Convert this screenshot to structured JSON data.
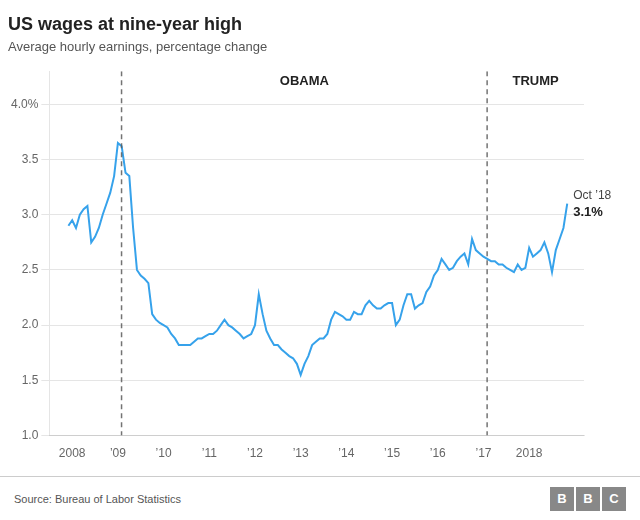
{
  "chart_data": {
    "type": "line",
    "title": "US wages at nine-year high",
    "subtitle": "Average hourly earnings, percentage change",
    "source": "Source: Bureau of Labor Statistics",
    "logo": "BBC",
    "x": [
      2007.917,
      2008.0,
      2008.083,
      2008.167,
      2008.25,
      2008.333,
      2008.417,
      2008.5,
      2008.583,
      2008.667,
      2008.75,
      2008.833,
      2008.917,
      2009.0,
      2009.083,
      2009.167,
      2009.25,
      2009.333,
      2009.417,
      2009.5,
      2009.583,
      2009.667,
      2009.75,
      2009.833,
      2009.917,
      2010.0,
      2010.083,
      2010.167,
      2010.25,
      2010.333,
      2010.417,
      2010.5,
      2010.583,
      2010.667,
      2010.75,
      2010.833,
      2010.917,
      2011.0,
      2011.083,
      2011.167,
      2011.25,
      2011.333,
      2011.417,
      2011.5,
      2011.583,
      2011.667,
      2011.75,
      2011.833,
      2011.917,
      2012.0,
      2012.083,
      2012.167,
      2012.25,
      2012.333,
      2012.417,
      2012.5,
      2012.583,
      2012.667,
      2012.75,
      2012.833,
      2012.917,
      2013.0,
      2013.083,
      2013.167,
      2013.25,
      2013.333,
      2013.417,
      2013.5,
      2013.583,
      2013.667,
      2013.75,
      2013.833,
      2013.917,
      2014.0,
      2014.083,
      2014.167,
      2014.25,
      2014.333,
      2014.417,
      2014.5,
      2014.583,
      2014.667,
      2014.75,
      2014.833,
      2014.917,
      2015.0,
      2015.083,
      2015.167,
      2015.25,
      2015.333,
      2015.417,
      2015.5,
      2015.583,
      2015.667,
      2015.75,
      2015.833,
      2015.917,
      2016.0,
      2016.083,
      2016.167,
      2016.25,
      2016.333,
      2016.417,
      2016.5,
      2016.583,
      2016.667,
      2016.75,
      2016.833,
      2016.917,
      2017.0,
      2017.083,
      2017.167,
      2017.25,
      2017.333,
      2017.417,
      2017.5,
      2017.583,
      2017.667,
      2017.75,
      2017.833,
      2017.917,
      2018.0,
      2018.083,
      2018.167,
      2018.25,
      2018.333,
      2018.417,
      2018.5,
      2018.583,
      2018.667,
      2018.75,
      2018.833
    ],
    "values": [
      2.9,
      2.95,
      2.88,
      3.0,
      3.05,
      3.08,
      2.75,
      2.8,
      2.88,
      3.0,
      3.1,
      3.2,
      3.35,
      3.65,
      3.62,
      3.38,
      3.35,
      2.88,
      2.5,
      2.45,
      2.42,
      2.38,
      2.1,
      2.05,
      2.02,
      2.0,
      1.98,
      1.92,
      1.88,
      1.82,
      1.82,
      1.82,
      1.82,
      1.85,
      1.88,
      1.88,
      1.9,
      1.92,
      1.92,
      1.95,
      2.0,
      2.05,
      2.0,
      1.98,
      1.95,
      1.92,
      1.88,
      1.9,
      1.92,
      2.0,
      2.28,
      2.1,
      1.95,
      1.88,
      1.82,
      1.82,
      1.78,
      1.75,
      1.72,
      1.7,
      1.65,
      1.55,
      1.65,
      1.72,
      1.82,
      1.85,
      1.88,
      1.88,
      1.92,
      2.05,
      2.12,
      2.1,
      2.08,
      2.05,
      2.05,
      2.12,
      2.1,
      2.1,
      2.18,
      2.22,
      2.18,
      2.15,
      2.15,
      2.18,
      2.2,
      2.2,
      2.0,
      2.05,
      2.18,
      2.28,
      2.28,
      2.15,
      2.18,
      2.2,
      2.3,
      2.35,
      2.45,
      2.5,
      2.6,
      2.55,
      2.5,
      2.52,
      2.58,
      2.62,
      2.65,
      2.55,
      2.78,
      2.68,
      2.65,
      2.62,
      2.6,
      2.58,
      2.58,
      2.55,
      2.55,
      2.52,
      2.5,
      2.48,
      2.55,
      2.5,
      2.52,
      2.7,
      2.62,
      2.65,
      2.68,
      2.75,
      2.65,
      2.48,
      2.68,
      2.78,
      2.88,
      3.1
    ],
    "xlim": [
      2007.5,
      2019.2
    ],
    "xticks": [
      2008,
      {
        "value": 2009,
        "label": "’09"
      },
      {
        "value": 2010,
        "label": "’10"
      },
      {
        "value": 2011,
        "label": "’11"
      },
      {
        "value": 2012,
        "label": "’12"
      },
      {
        "value": 2013,
        "label": "’13"
      },
      {
        "value": 2014,
        "label": "’14"
      },
      {
        "value": 2015,
        "label": "’15"
      },
      {
        "value": 2016,
        "label": "’16"
      },
      {
        "value": 2017,
        "label": "’17"
      },
      2018
    ],
    "ylim": [
      1.0,
      4.3
    ],
    "yticks": [
      {
        "value": 1.0,
        "label": "1.0"
      },
      1.5,
      {
        "value": 2.0,
        "label": "2.0"
      },
      2.5,
      {
        "value": 3.0,
        "label": "3.0"
      },
      3.5,
      {
        "value": 4.0,
        "label": "4.0%"
      }
    ],
    "grid": "y",
    "vlines": [
      {
        "x": 2009.08,
        "label": "OBAMA"
      },
      {
        "x": 2017.08,
        "label": "TRUMP"
      }
    ],
    "annotations": [
      "Oct ’18",
      "3.1%"
    ]
  }
}
